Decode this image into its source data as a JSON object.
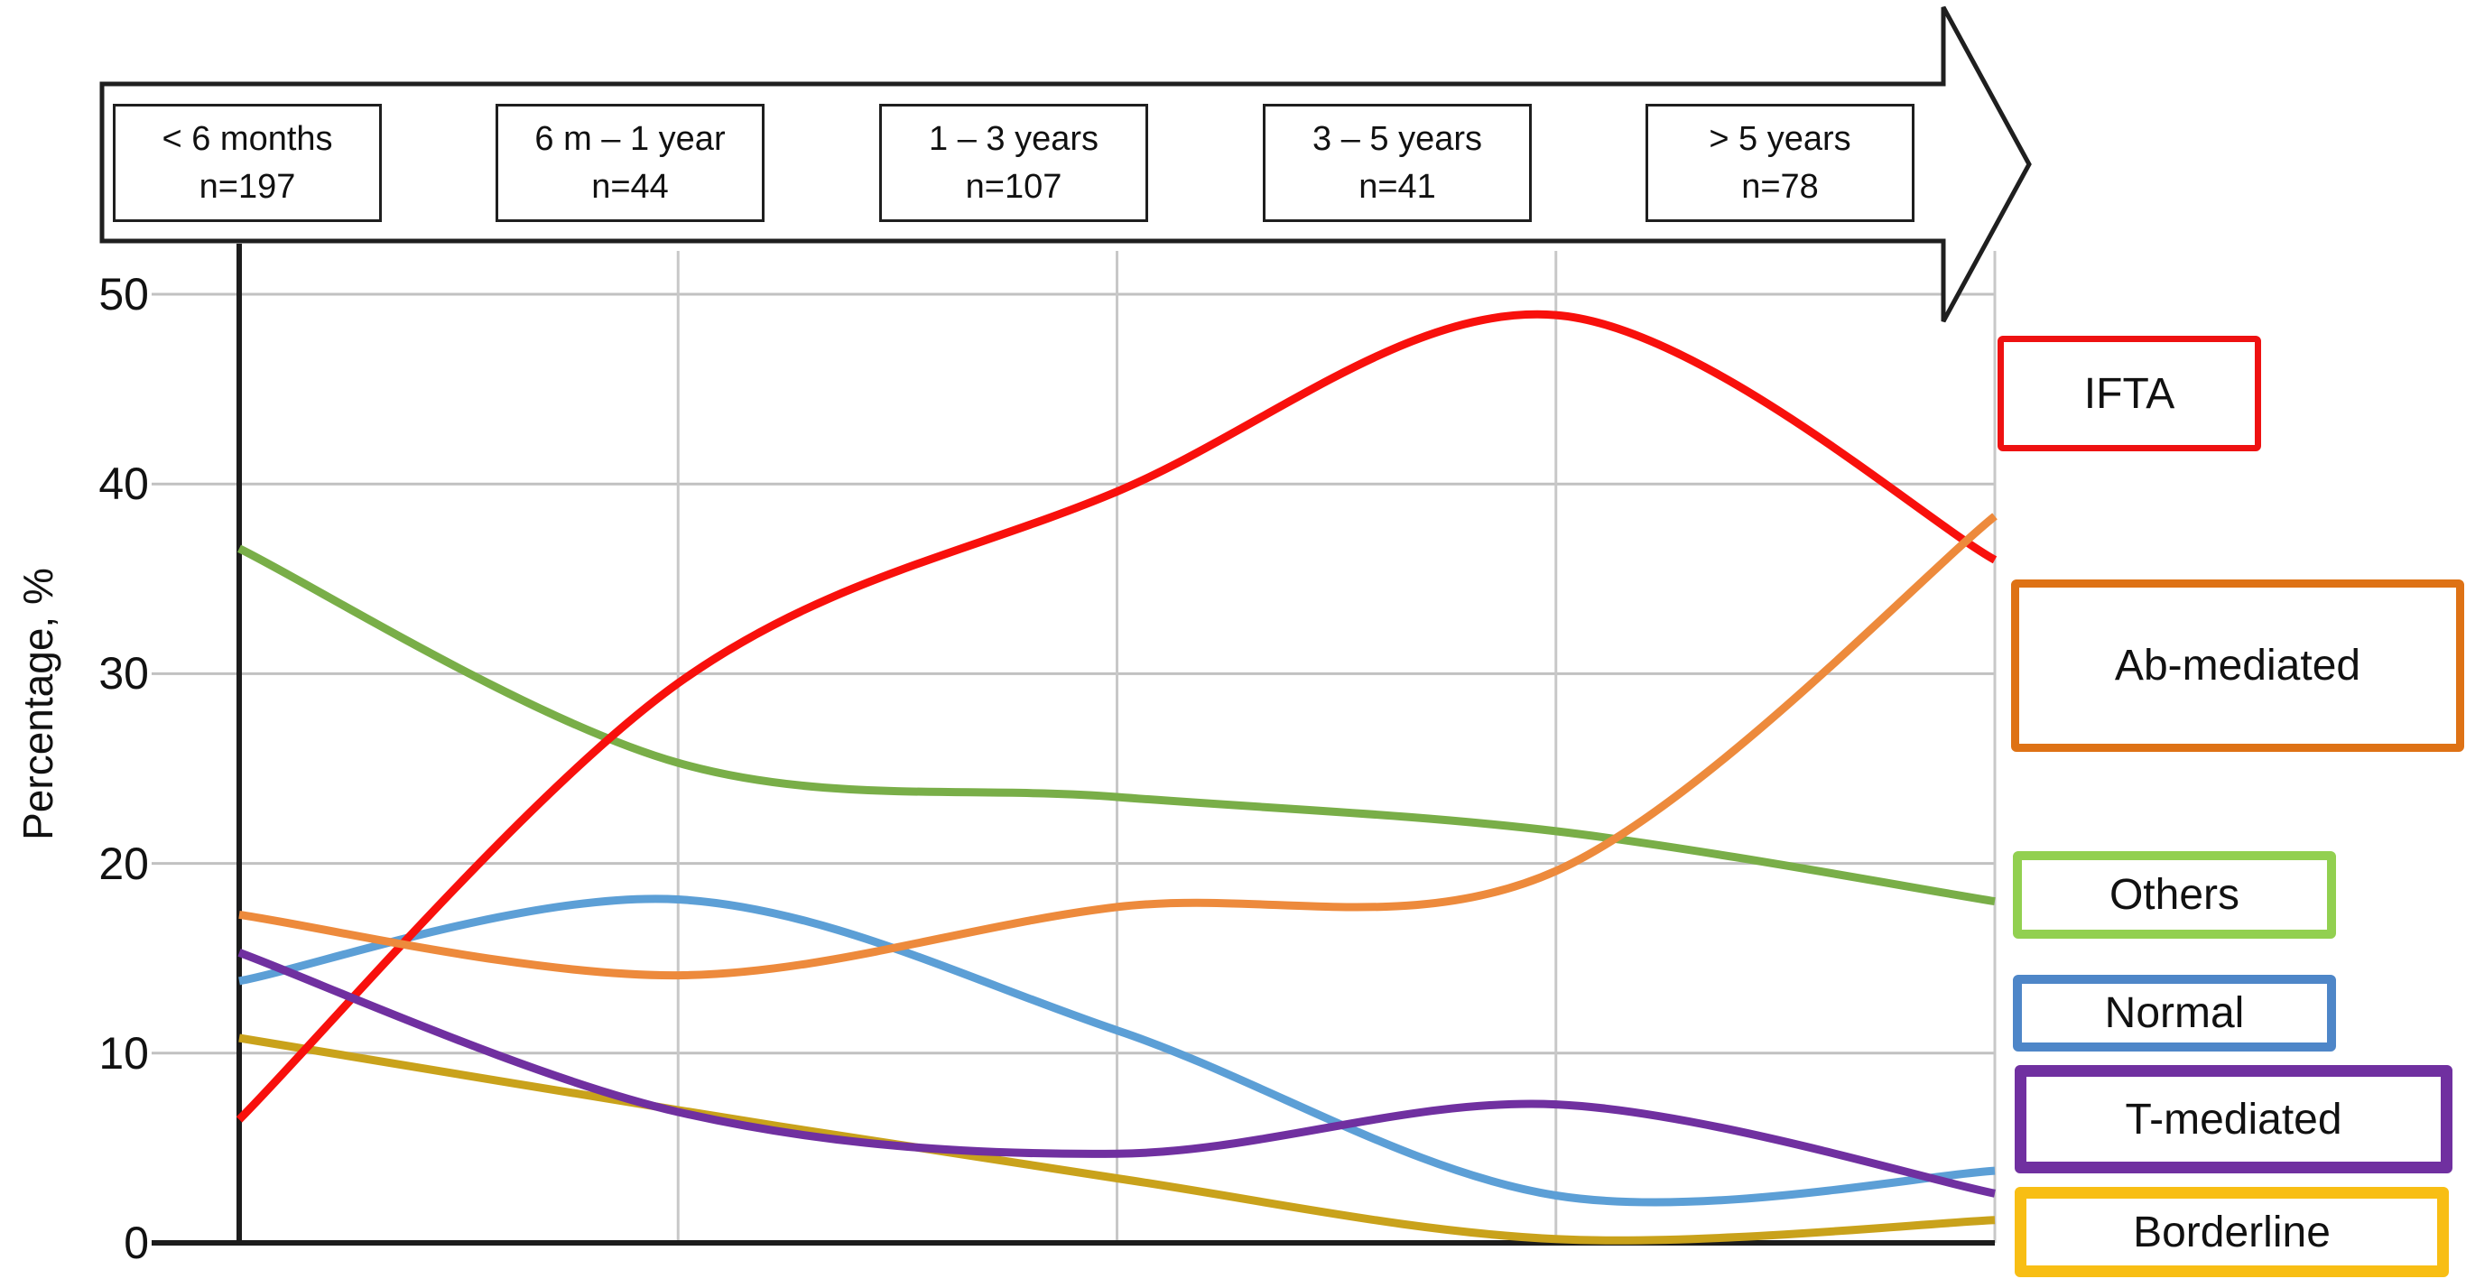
{
  "y_axis": {
    "title": "Percentage, %",
    "ticks": [
      0,
      10,
      20,
      30,
      40,
      50
    ]
  },
  "timeline_arrow": {
    "groups": [
      {
        "label": "< 6 months",
        "n_label": "n=197"
      },
      {
        "label": "6 m – 1 year",
        "n_label": "n=44"
      },
      {
        "label": "1 – 3 years",
        "n_label": "n=107"
      },
      {
        "label": "3 – 5 years",
        "n_label": "n=41"
      },
      {
        "label": "> 5 years",
        "n_label": "n=78"
      }
    ]
  },
  "legend": [
    {
      "label": "IFTA",
      "color": "#EE1111"
    },
    {
      "label": "Ab-mediated",
      "color": "#DE7215"
    },
    {
      "label": "Others",
      "color": "#92D050"
    },
    {
      "label": "Normal",
      "color": "#4E86C8"
    },
    {
      "label": "T-mediated",
      "color": "#7030A0"
    },
    {
      "label": "Borderline",
      "color": "#F8BE14"
    }
  ],
  "chart_data": {
    "type": "line",
    "smoothing": "spline",
    "x_categories": [
      "< 6 months",
      "6 m – 1 year",
      "1 – 3 years",
      "3 – 5 years",
      "> 5 years"
    ],
    "n_per_category": [
      197,
      44,
      107,
      41,
      78
    ],
    "ylabel": "Percentage, %",
    "ylim": [
      0,
      50
    ],
    "grid": true,
    "legend_position": "right",
    "series": [
      {
        "name": "IFTA",
        "line_color": "#F8100C",
        "legend_color": "#EE1111",
        "values": [
          6.5,
          29.5,
          39.6,
          48.9,
          36.0
        ]
      },
      {
        "name": "Ab-mediated",
        "line_color": "#ED8A3C",
        "legend_color": "#DE7215",
        "values": [
          17.3,
          14.1,
          17.7,
          19.6,
          38.3
        ]
      },
      {
        "name": "Others",
        "line_color": "#79AE48",
        "legend_color": "#92D050",
        "values": [
          36.6,
          25.3,
          23.5,
          21.7,
          18.0
        ]
      },
      {
        "name": "Normal",
        "line_color": "#5C9FD6",
        "legend_color": "#4E86C8",
        "values": [
          13.8,
          18.1,
          11.2,
          2.5,
          3.8
        ]
      },
      {
        "name": "T-mediated",
        "line_color": "#7030A0",
        "legend_color": "#7030A0",
        "values": [
          15.3,
          6.9,
          4.7,
          7.3,
          2.6
        ]
      },
      {
        "name": "Borderline",
        "line_color": "#C9A21B",
        "legend_color": "#F8BE14",
        "values": [
          10.8,
          7.0,
          3.4,
          0.2,
          1.2
        ]
      }
    ]
  }
}
